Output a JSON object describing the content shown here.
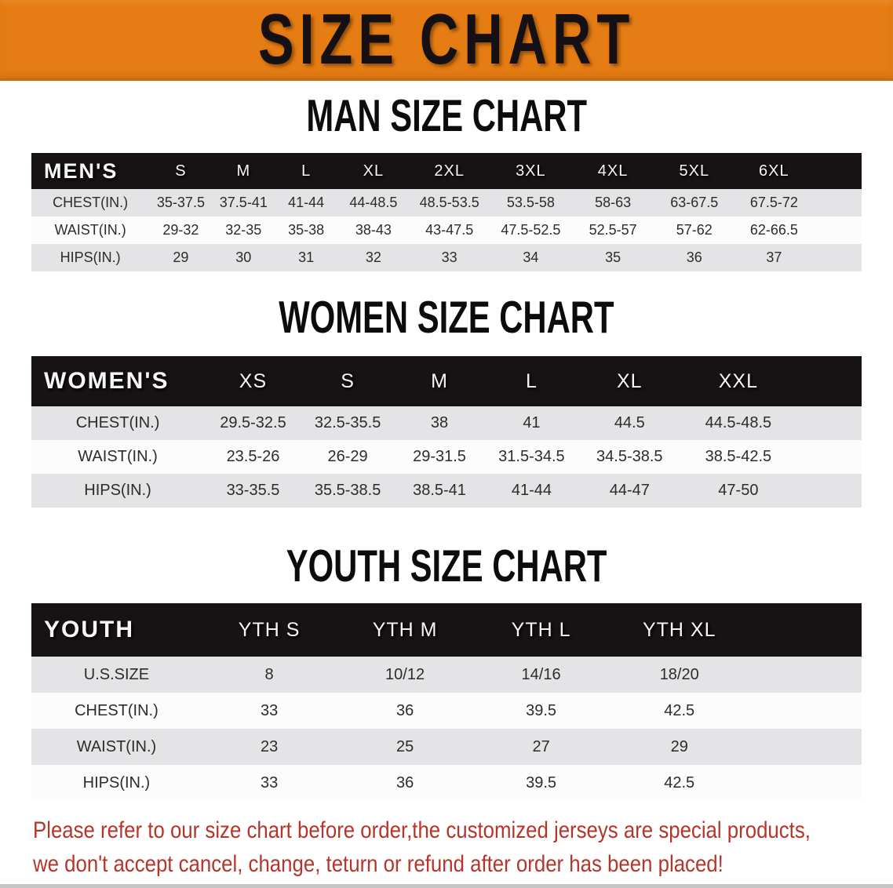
{
  "banner": {
    "title": "SIZE CHART"
  },
  "colors": {
    "banner_orange": "#e67d14",
    "header_black": "#171214",
    "row_gray": "#e4e4e6",
    "row_white": "#fcfcfc",
    "footer_red": "#b5352a"
  },
  "sections": [
    {
      "id": "men",
      "heading": "MAN SIZE CHART",
      "header": [
        "MEN'S",
        "S",
        "M",
        "L",
        "XL",
        "2XL",
        "3XL",
        "4XL",
        "5XL",
        "6XL"
      ],
      "rows": [
        [
          "CHEST(IN.)",
          "35-37.5",
          "37.5-41",
          "41-44",
          "44-48.5",
          "48.5-53.5",
          "53.5-58",
          "58-63",
          "63-67.5",
          "67.5-72"
        ],
        [
          "WAIST(IN.)",
          "29-32",
          "32-35",
          "35-38",
          "38-43",
          "43-47.5",
          "47.5-52.5",
          "52.5-57",
          "57-62",
          "62-66.5"
        ],
        [
          "HIPS(IN.)",
          "29",
          "30",
          "31",
          "32",
          "33",
          "34",
          "35",
          "36",
          "37"
        ]
      ]
    },
    {
      "id": "women",
      "heading": "WOMEN SIZE CHART",
      "header": [
        "WOMEN'S",
        "XS",
        "S",
        "M",
        "L",
        "XL",
        "XXL"
      ],
      "rows": [
        [
          "CHEST(IN.)",
          "29.5-32.5",
          "32.5-35.5",
          "38",
          "41",
          "44.5",
          "44.5-48.5"
        ],
        [
          "WAIST(IN.)",
          "23.5-26",
          "26-29",
          "29-31.5",
          "31.5-34.5",
          "34.5-38.5",
          "38.5-42.5"
        ],
        [
          "HIPS(IN.)",
          "33-35.5",
          "35.5-38.5",
          "38.5-41",
          "41-44",
          "44-47",
          "47-50"
        ]
      ]
    },
    {
      "id": "youth",
      "heading": "YOUTH SIZE CHART",
      "header": [
        "YOUTH",
        "YTH S",
        "YTH M",
        "YTH L",
        "YTH XL"
      ],
      "rows": [
        [
          "U.S.SIZE",
          "8",
          "10/12",
          "14/16",
          "18/20"
        ],
        [
          "CHEST(IN.)",
          "33",
          "36",
          "39.5",
          "42.5"
        ],
        [
          "WAIST(IN.)",
          "23",
          "25",
          "27",
          "29"
        ],
        [
          "HIPS(IN.)",
          "33",
          "36",
          "39.5",
          "42.5"
        ]
      ]
    }
  ],
  "footer": {
    "line1": "Please refer to our size chart before order,the customized jerseys are special products,",
    "line2": "we don't accept cancel, change, teturn or refund after order has been placed!"
  }
}
